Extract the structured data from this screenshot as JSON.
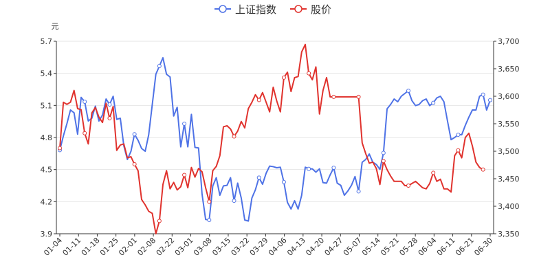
{
  "chart_data": {
    "type": "line",
    "title": "",
    "legend": {
      "placement": "top-center",
      "entries": [
        {
          "name": "上证指数",
          "color": "#4e72e6"
        },
        {
          "name": "股价",
          "color": "#e0322d"
        }
      ]
    },
    "left_axis": {
      "unit": "元",
      "ylim": [
        3.9,
        5.7
      ],
      "ticks": [
        "3.9",
        "4.2",
        "4.5",
        "4.8",
        "5.1",
        "5.4",
        "5.7"
      ]
    },
    "right_axis": {
      "ylim": [
        3350,
        3700
      ],
      "ticks": [
        "3,350",
        "3,400",
        "3,450",
        "3,500",
        "3,550",
        "3,600",
        "3,650",
        "3,700"
      ]
    },
    "x_tick_labels": [
      "01-04",
      "01-11",
      "01-18",
      "01-25",
      "02-01",
      "02-08",
      "02-22",
      "03-01",
      "03-08",
      "03-15",
      "03-22",
      "03-29",
      "04-06",
      "04-13",
      "04-20",
      "04-27",
      "05-07",
      "05-14",
      "05-21",
      "05-28",
      "06-04",
      "06-11",
      "06-21",
      "06-30"
    ],
    "grid": {
      "horizontal": true,
      "vertical": false
    },
    "series": [
      {
        "name": "上证指数",
        "axis": "right",
        "color": "#4e72e6",
        "values": [
          3502,
          3528,
          3550,
          3575,
          3570,
          3531,
          3598,
          3590,
          3555,
          3560,
          3582,
          3555,
          3566,
          3595,
          3585,
          3600,
          3558,
          3560,
          3510,
          3485,
          3500,
          3531,
          3520,
          3505,
          3500,
          3530,
          3585,
          3640,
          3655,
          3670,
          3640,
          3635,
          3564,
          3580,
          3508,
          3550,
          3508,
          3567,
          3507,
          3506,
          3422,
          3376,
          3375,
          3437,
          3452,
          3420,
          3437,
          3438,
          3452,
          3410,
          3442,
          3415,
          3375,
          3373,
          3415,
          3430,
          3452,
          3440,
          3460,
          3473,
          3472,
          3470,
          3471,
          3444,
          3407,
          3395,
          3410,
          3395,
          3420,
          3471,
          3468,
          3468,
          3462,
          3468,
          3443,
          3442,
          3457,
          3470,
          3442,
          3438,
          3420,
          3428,
          3438,
          3454,
          3427,
          3480,
          3485,
          3495,
          3480,
          3476,
          3467,
          3497,
          3577,
          3585,
          3595,
          3590,
          3600,
          3605,
          3610,
          3592,
          3583,
          3585,
          3592,
          3595,
          3583,
          3588,
          3597,
          3600,
          3590,
          3555,
          3521,
          3525,
          3530,
          3530,
          3547,
          3562,
          3575,
          3575,
          3600,
          3603,
          3575,
          3593
        ]
      },
      {
        "name": "股价",
        "axis": "left",
        "color": "#e0322d",
        "values": [
          4.7,
          5.13,
          5.11,
          5.13,
          5.24,
          5.07,
          5.06,
          4.84,
          4.74,
          5.03,
          5.08,
          4.99,
          4.94,
          5.12,
          4.98,
          5.09,
          4.68,
          4.73,
          4.74,
          4.61,
          4.62,
          4.55,
          4.49,
          4.22,
          4.17,
          4.11,
          4.09,
          3.9,
          4.02,
          4.36,
          4.49,
          4.32,
          4.38,
          4.31,
          4.34,
          4.45,
          4.33,
          4.52,
          4.43,
          4.51,
          4.48,
          4.33,
          4.2,
          4.49,
          4.53,
          4.63,
          4.9,
          4.91,
          4.88,
          4.81,
          4.86,
          4.95,
          4.89,
          5.07,
          5.13,
          5.2,
          5.15,
          5.22,
          5.13,
          5.04,
          5.27,
          5.14,
          5.04,
          5.36,
          5.41,
          5.23,
          5.36,
          5.37,
          5.6,
          5.67,
          5.4,
          5.34,
          5.46,
          5.02,
          5.24,
          5.36,
          5.18,
          5.18,
          5.18,
          5.18,
          5.18,
          5.18,
          5.18,
          5.18,
          5.18,
          4.75,
          4.65,
          4.56,
          4.57,
          4.51,
          4.36,
          4.58,
          4.5,
          4.44,
          4.39,
          4.39,
          4.39,
          4.35,
          4.35,
          4.37,
          4.39,
          4.36,
          4.33,
          4.32,
          4.37,
          4.47,
          4.39,
          4.41,
          4.32,
          4.32,
          4.29,
          4.63,
          4.68,
          4.61,
          4.8,
          4.84,
          4.72,
          4.57,
          4.52,
          4.5
        ]
      }
    ]
  }
}
